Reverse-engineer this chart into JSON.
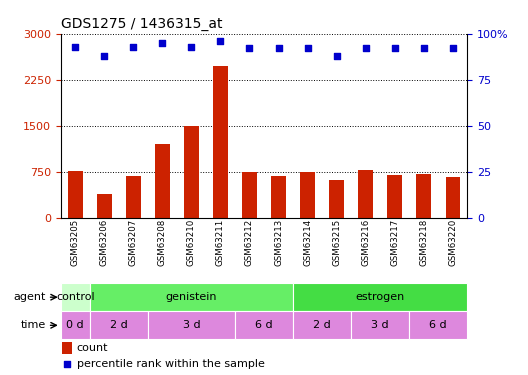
{
  "title": "GDS1275 / 1436315_at",
  "samples": [
    "GSM63205",
    "GSM63206",
    "GSM63207",
    "GSM63208",
    "GSM63210",
    "GSM63211",
    "GSM63212",
    "GSM63213",
    "GSM63214",
    "GSM63215",
    "GSM63216",
    "GSM63217",
    "GSM63218",
    "GSM63220"
  ],
  "counts": [
    760,
    390,
    680,
    1200,
    1500,
    2480,
    750,
    680,
    740,
    620,
    770,
    690,
    710,
    660
  ],
  "percentiles": [
    93,
    88,
    93,
    95,
    93,
    96,
    92,
    92,
    92,
    88,
    92,
    92,
    92,
    92
  ],
  "ylim_left": [
    0,
    3000
  ],
  "yticks_left": [
    0,
    750,
    1500,
    2250,
    3000
  ],
  "ylim_right": [
    0,
    100
  ],
  "yticks_right": [
    0,
    25,
    50,
    75,
    100
  ],
  "bar_color": "#cc2200",
  "dot_color": "#0000cc",
  "agent_segs": [
    {
      "label": "control",
      "start": 0,
      "end": 1,
      "color": "#ccffcc"
    },
    {
      "label": "genistein",
      "start": 1,
      "end": 8,
      "color": "#66ee66"
    },
    {
      "label": "estrogen",
      "start": 8,
      "end": 14,
      "color": "#44dd44"
    }
  ],
  "time_segs": [
    {
      "label": "0 d",
      "start": 0,
      "end": 1
    },
    {
      "label": "2 d",
      "start": 1,
      "end": 3
    },
    {
      "label": "3 d",
      "start": 3,
      "end": 6
    },
    {
      "label": "6 d",
      "start": 6,
      "end": 8
    },
    {
      "label": "2 d",
      "start": 8,
      "end": 10
    },
    {
      "label": "3 d",
      "start": 10,
      "end": 12
    },
    {
      "label": "6 d",
      "start": 12,
      "end": 14
    }
  ],
  "time_color": "#dd88dd",
  "background_color": "#ffffff"
}
